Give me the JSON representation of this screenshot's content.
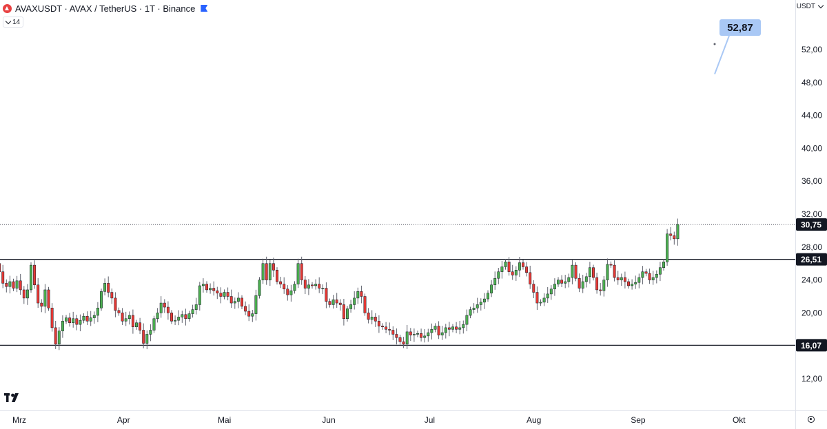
{
  "header": {
    "symbol": "AVAXUSDT · AVAX / TetherUS · 1T · Binance"
  },
  "indicator_toggle": {
    "count": "14"
  },
  "currency_menu": {
    "label": "USDT"
  },
  "colors": {
    "up": "#26a69a",
    "down": "#ef5350",
    "up_fill": "#4caf50",
    "down_fill": "#e53935",
    "callout": "#a9c8f5"
  },
  "chart_data": {
    "type": "candlestick",
    "y_ticks": [
      "52,00",
      "48,00",
      "44,00",
      "40,00",
      "36,00",
      "32,00",
      "28,00",
      "24,00",
      "20,00",
      "16,00",
      "12,00"
    ],
    "y_tick_values": [
      52,
      48,
      44,
      40,
      36,
      32,
      28,
      24,
      20,
      16,
      12
    ],
    "ylim": [
      9.5,
      56.5
    ],
    "x_ticks": [
      {
        "label": "Mrz",
        "day": 0
      },
      {
        "label": "Apr",
        "day": 31
      },
      {
        "label": "Mai",
        "day": 61
      },
      {
        "label": "Jun",
        "day": 92
      },
      {
        "label": "Jul",
        "day": 122
      },
      {
        "label": "Aug",
        "day": 153
      },
      {
        "label": "Sep",
        "day": 184
      },
      {
        "label": "Okt",
        "day": 214
      }
    ],
    "horizontal_lines": [
      {
        "value": 26.51,
        "label": "26,51"
      },
      {
        "value": 16.07,
        "label": "16,07"
      }
    ],
    "last_price": {
      "value": 30.75,
      "label": "30,75"
    },
    "callout": {
      "label": "52,87",
      "value": 52.87
    },
    "closes": [
      26.0,
      25.0,
      23.6,
      23.2,
      23.8,
      23.0,
      23.9,
      22.8,
      21.8,
      22.8,
      25.8,
      23.4,
      21.2,
      20.8,
      22.8,
      20.6,
      18.2,
      16.2,
      17.8,
      19.0,
      19.4,
      18.8,
      19.3,
      18.6,
      19.1,
      19.6,
      19.0,
      19.4,
      19.7,
      20.6,
      22.6,
      23.6,
      22.5,
      21.8,
      20.3,
      20.0,
      19.0,
      19.3,
      19.7,
      18.3,
      18.8,
      17.9,
      16.3,
      17.4,
      17.9,
      19.3,
      20.0,
      21.2,
      20.7,
      20.0,
      19.0,
      19.1,
      19.5,
      19.8,
      19.3,
      19.9,
      20.4,
      21.0,
      23.3,
      23.5,
      22.8,
      23.0,
      22.7,
      22.4,
      22.0,
      22.5,
      22.0,
      21.2,
      21.4,
      21.8,
      20.8,
      20.2,
      19.6,
      19.9,
      22.1,
      24.0,
      26.0,
      24.0,
      26.0,
      25.2,
      23.8,
      23.5,
      22.9,
      22.2,
      22.7,
      23.5,
      26.0,
      24.0,
      23.0,
      23.4,
      23.3,
      23.5,
      23.0,
      23.0,
      21.4,
      21.0,
      21.6,
      21.2,
      21.0,
      19.3,
      20.5,
      21.0,
      21.8,
      22.6,
      22.0,
      20.0,
      19.2,
      19.5,
      19.0,
      18.4,
      18.3,
      18.0,
      17.9,
      17.4,
      17.0,
      16.5,
      16.2,
      17.7,
      17.3,
      17.4,
      17.5,
      17.0,
      17.2,
      17.6,
      18.0,
      18.4,
      17.3,
      17.6,
      18.2,
      18.0,
      18.3,
      18.0,
      18.2,
      18.6,
      19.7,
      20.4,
      20.6,
      21.0,
      21.3,
      21.7,
      22.4,
      23.4,
      24.2,
      25.0,
      25.6,
      26.2,
      25.0,
      24.6,
      25.2,
      26.1,
      25.6,
      24.9,
      23.5,
      22.5,
      21.2,
      21.3,
      21.8,
      22.3,
      22.9,
      23.5,
      24.0,
      23.6,
      23.8,
      24.3,
      25.8,
      24.2,
      23.0,
      23.8,
      24.4,
      25.5,
      24.3,
      22.8,
      22.7,
      24.0,
      25.9,
      25.8,
      24.3,
      24.0,
      24.3,
      23.8,
      23.3,
      23.5,
      23.7,
      24.3,
      25.0,
      24.8,
      24.0,
      24.3,
      24.7,
      25.5,
      26.2,
      29.6,
      29.4,
      29.0,
      30.75
    ]
  }
}
